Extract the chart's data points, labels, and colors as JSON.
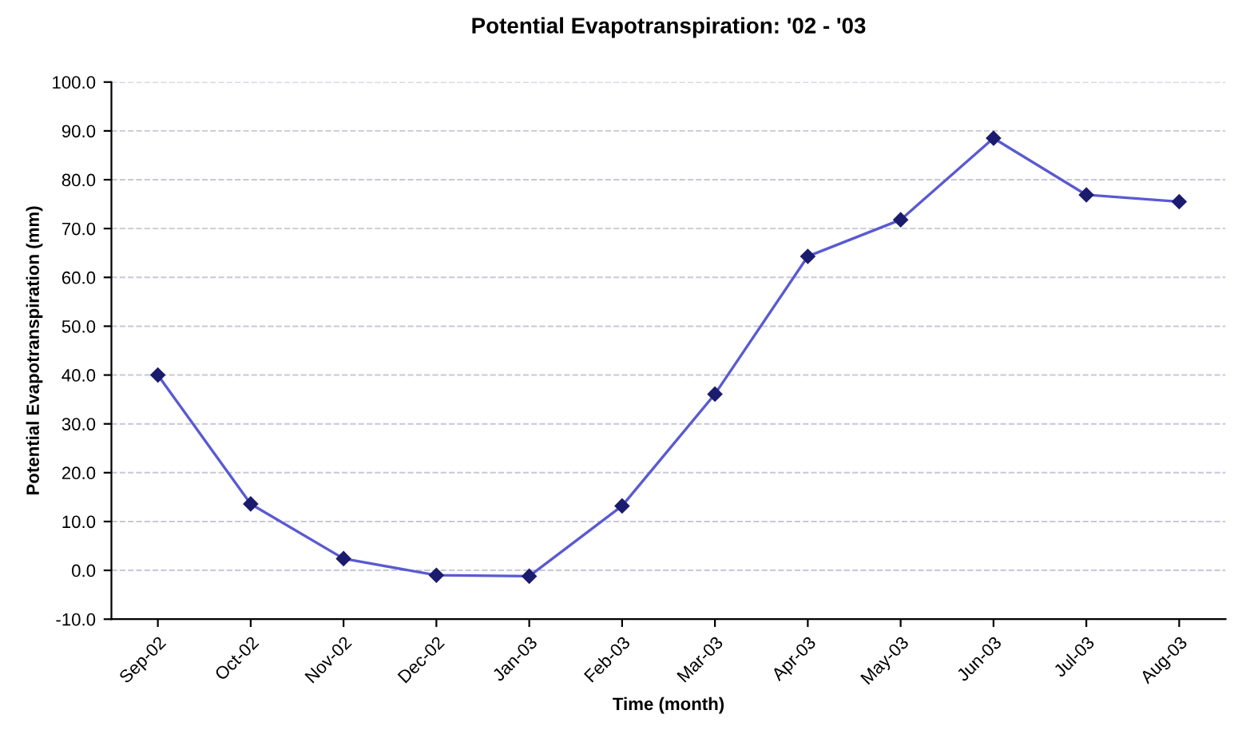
{
  "chart_data": {
    "type": "line",
    "title": "Potential Evapotranspiration: '02 - '03",
    "xlabel": "Time (month)",
    "ylabel": "Potential Evapotranspiration (mm)",
    "categories": [
      "Sep-02",
      "Oct-02",
      "Nov-02",
      "Dec-02",
      "Jan-03",
      "Feb-03",
      "Mar-03",
      "Apr-03",
      "May-03",
      "Jun-03",
      "Jul-03",
      "Aug-03"
    ],
    "series": [
      {
        "color": "#5a5ad2",
        "values": [
          40.0,
          13.6,
          2.4,
          -1.0,
          -1.2,
          13.2,
          36.1,
          64.3,
          71.8,
          88.5,
          76.9,
          75.5
        ]
      }
    ],
    "ylim": [
      -10,
      100
    ],
    "yticks": [
      {
        "value": -10,
        "label": "-10.0"
      },
      {
        "value": 0,
        "label": "0.0"
      },
      {
        "value": 10,
        "label": "10.0"
      },
      {
        "value": 20,
        "label": "20.0"
      },
      {
        "value": 30,
        "label": "30.0"
      },
      {
        "value": 40,
        "label": "40.0"
      },
      {
        "value": 50,
        "label": "50.0"
      },
      {
        "value": 60,
        "label": "60.0"
      },
      {
        "value": 70,
        "label": "70.0"
      },
      {
        "value": 80,
        "label": "80.0"
      },
      {
        "value": 90,
        "label": "90.0"
      },
      {
        "value": 100,
        "label": "100.0"
      }
    ],
    "grid": "y",
    "marker": "diamond",
    "line_style": "solid",
    "legend": false
  }
}
